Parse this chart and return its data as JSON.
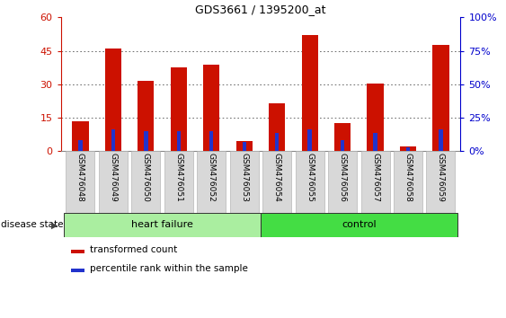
{
  "title": "GDS3661 / 1395200_at",
  "categories": [
    "GSM476048",
    "GSM476049",
    "GSM476050",
    "GSM476051",
    "GSM476052",
    "GSM476053",
    "GSM476054",
    "GSM476055",
    "GSM476056",
    "GSM476057",
    "GSM476058",
    "GSM476059"
  ],
  "transformed_count": [
    13.5,
    46.0,
    31.5,
    37.5,
    39.0,
    4.5,
    21.5,
    52.0,
    12.5,
    30.5,
    2.0,
    47.5
  ],
  "percentile_rank": [
    8.0,
    16.0,
    15.0,
    15.0,
    15.0,
    7.0,
    13.5,
    16.5,
    8.0,
    13.5,
    3.0,
    16.5
  ],
  "ylim_left": [
    0,
    60
  ],
  "ylim_right": [
    0,
    100
  ],
  "yticks_left": [
    0,
    15,
    30,
    45,
    60
  ],
  "yticks_right": [
    0,
    25,
    50,
    75,
    100
  ],
  "bar_color_red": "#CC1100",
  "bar_color_blue": "#2233CC",
  "axis_color_left": "#CC1100",
  "axis_color_right": "#0000CC",
  "tick_label_bg": "#D8D8D8",
  "grid_color": "#555555",
  "legend_red_label": "transformed count",
  "legend_blue_label": "percentile rank within the sample",
  "disease_state_label": "disease state",
  "hf_color": "#AAEEA0",
  "ctrl_color": "#44DD44",
  "bar_width": 0.5,
  "blue_bar_width": 0.12
}
